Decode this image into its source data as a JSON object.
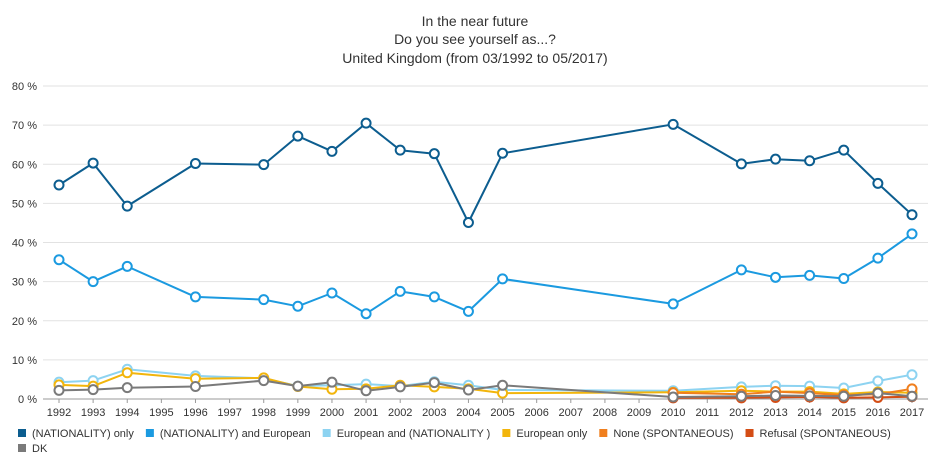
{
  "chart_data": {
    "type": "line",
    "title": [
      "In the near future",
      "Do you see yourself as...?",
      "United Kingdom (from 03/1992 to 05/2017)"
    ],
    "xlabel": "",
    "ylabel": "",
    "x_ticks": [
      "1992",
      "1993",
      "1994",
      "1995",
      "1996",
      "1997",
      "1998",
      "1999",
      "2000",
      "2001",
      "2002",
      "2003",
      "2004",
      "2005",
      "2006",
      "2007",
      "2008",
      "2009",
      "2010",
      "2011",
      "2012",
      "2013",
      "2014",
      "2015",
      "2016",
      "2017"
    ],
    "y_ticks": [
      "0 %",
      "10 %",
      "20 %",
      "30 %",
      "40 %",
      "50 %",
      "60 %",
      "70 %",
      "80 %"
    ],
    "ylim": [
      0,
      80
    ],
    "grid": "horizontal",
    "legend_position": "bottom",
    "series": [
      {
        "name": "(NATIONALITY) only",
        "color": "#0c5d8f",
        "points": [
          {
            "x": 1992,
            "y": 54.7
          },
          {
            "x": 1993,
            "y": 60.3
          },
          {
            "x": 1994,
            "y": 49.3
          },
          {
            "x": 1996,
            "y": 60.2
          },
          {
            "x": 1998,
            "y": 59.9
          },
          {
            "x": 1999,
            "y": 67.2
          },
          {
            "x": 2000,
            "y": 63.3
          },
          {
            "x": 2001,
            "y": 70.5
          },
          {
            "x": 2002,
            "y": 63.6
          },
          {
            "x": 2003,
            "y": 62.7
          },
          {
            "x": 2004,
            "y": 45.1
          },
          {
            "x": 2005,
            "y": 62.8
          },
          {
            "x": 2010,
            "y": 70.2
          },
          {
            "x": 2012,
            "y": 60.1
          },
          {
            "x": 2013,
            "y": 61.3
          },
          {
            "x": 2014,
            "y": 60.9
          },
          {
            "x": 2015,
            "y": 63.6
          },
          {
            "x": 2016,
            "y": 55.1
          },
          {
            "x": 2017,
            "y": 47.1
          }
        ]
      },
      {
        "name": "(NATIONALITY) and European",
        "color": "#1b9ae0",
        "points": [
          {
            "x": 1992,
            "y": 35.6
          },
          {
            "x": 1993,
            "y": 30.0
          },
          {
            "x": 1994,
            "y": 33.9
          },
          {
            "x": 1996,
            "y": 26.1
          },
          {
            "x": 1998,
            "y": 25.4
          },
          {
            "x": 1999,
            "y": 23.7
          },
          {
            "x": 2000,
            "y": 27.1
          },
          {
            "x": 2001,
            "y": 21.8
          },
          {
            "x": 2002,
            "y": 27.5
          },
          {
            "x": 2003,
            "y": 26.1
          },
          {
            "x": 2004,
            "y": 22.4
          },
          {
            "x": 2005,
            "y": 30.7
          },
          {
            "x": 2010,
            "y": 24.3
          },
          {
            "x": 2012,
            "y": 33.0
          },
          {
            "x": 2013,
            "y": 31.1
          },
          {
            "x": 2014,
            "y": 31.6
          },
          {
            "x": 2015,
            "y": 30.8
          },
          {
            "x": 2016,
            "y": 36.0
          },
          {
            "x": 2017,
            "y": 42.2
          }
        ]
      },
      {
        "name": "European and (NATIONALITY )",
        "color": "#8dd3f1",
        "points": [
          {
            "x": 1992,
            "y": 4.3
          },
          {
            "x": 1993,
            "y": 4.7
          },
          {
            "x": 1994,
            "y": 7.6
          },
          {
            "x": 1996,
            "y": 5.9
          },
          {
            "x": 1998,
            "y": 5.3
          },
          {
            "x": 1999,
            "y": 3.3
          },
          {
            "x": 2000,
            "y": 3.5
          },
          {
            "x": 2001,
            "y": 3.8
          },
          {
            "x": 2002,
            "y": 3.3
          },
          {
            "x": 2003,
            "y": 4.4
          },
          {
            "x": 2004,
            "y": 3.5
          },
          {
            "x": 2005,
            "y": 2.3
          },
          {
            "x": 2010,
            "y": 2.1
          },
          {
            "x": 2012,
            "y": 3.1
          },
          {
            "x": 2013,
            "y": 3.4
          },
          {
            "x": 2014,
            "y": 3.3
          },
          {
            "x": 2015,
            "y": 2.8
          },
          {
            "x": 2016,
            "y": 4.6
          },
          {
            "x": 2017,
            "y": 6.2
          }
        ]
      },
      {
        "name": "European only",
        "color": "#f2b50c",
        "points": [
          {
            "x": 1992,
            "y": 3.6
          },
          {
            "x": 1993,
            "y": 3.3
          },
          {
            "x": 1994,
            "y": 6.7
          },
          {
            "x": 1996,
            "y": 5.2
          },
          {
            "x": 1998,
            "y": 5.4
          },
          {
            "x": 1999,
            "y": 3.2
          },
          {
            "x": 2000,
            "y": 2.5
          },
          {
            "x": 2001,
            "y": 2.6
          },
          {
            "x": 2002,
            "y": 3.5
          },
          {
            "x": 2003,
            "y": 3.1
          },
          {
            "x": 2004,
            "y": 2.6
          },
          {
            "x": 2005,
            "y": 1.5
          },
          {
            "x": 2010,
            "y": 1.7
          },
          {
            "x": 2012,
            "y": 2.1
          },
          {
            "x": 2013,
            "y": 1.9
          },
          {
            "x": 2014,
            "y": 1.9
          },
          {
            "x": 2015,
            "y": 1.3
          },
          {
            "x": 2016,
            "y": 1.8
          },
          {
            "x": 2017,
            "y": 1.6
          }
        ]
      },
      {
        "name": "None (SPONTANEOUS)",
        "color": "#f07f1e",
        "points": [
          {
            "x": 2010,
            "y": 1.6
          },
          {
            "x": 2012,
            "y": 1.2
          },
          {
            "x": 2013,
            "y": 1.9
          },
          {
            "x": 2014,
            "y": 1.5
          },
          {
            "x": 2015,
            "y": 1.0
          },
          {
            "x": 2016,
            "y": 1.2
          },
          {
            "x": 2017,
            "y": 2.6
          }
        ]
      },
      {
        "name": "Refusal (SPONTANEOUS)",
        "color": "#d44d15",
        "points": [
          {
            "x": 2010,
            "y": 0.3
          },
          {
            "x": 2012,
            "y": 0.3
          },
          {
            "x": 2013,
            "y": 0.4
          },
          {
            "x": 2014,
            "y": 0.5
          },
          {
            "x": 2015,
            "y": 0.3
          },
          {
            "x": 2016,
            "y": 0.4
          },
          {
            "x": 2017,
            "y": 0.6
          }
        ]
      },
      {
        "name": "DK",
        "color": "#7a7a7a",
        "points": [
          {
            "x": 1992,
            "y": 2.2
          },
          {
            "x": 1993,
            "y": 2.4
          },
          {
            "x": 1994,
            "y": 2.9
          },
          {
            "x": 1996,
            "y": 3.2
          },
          {
            "x": 1998,
            "y": 4.7
          },
          {
            "x": 1999,
            "y": 3.3
          },
          {
            "x": 2000,
            "y": 4.3
          },
          {
            "x": 2001,
            "y": 2.1
          },
          {
            "x": 2002,
            "y": 3.1
          },
          {
            "x": 2003,
            "y": 4.2
          },
          {
            "x": 2004,
            "y": 2.3
          },
          {
            "x": 2005,
            "y": 3.5
          },
          {
            "x": 2010,
            "y": 0.5
          },
          {
            "x": 2012,
            "y": 0.7
          },
          {
            "x": 2013,
            "y": 0.9
          },
          {
            "x": 2014,
            "y": 0.8
          },
          {
            "x": 2015,
            "y": 0.7
          },
          {
            "x": 2016,
            "y": 1.5
          },
          {
            "x": 2017,
            "y": 0.7
          }
        ]
      }
    ]
  }
}
